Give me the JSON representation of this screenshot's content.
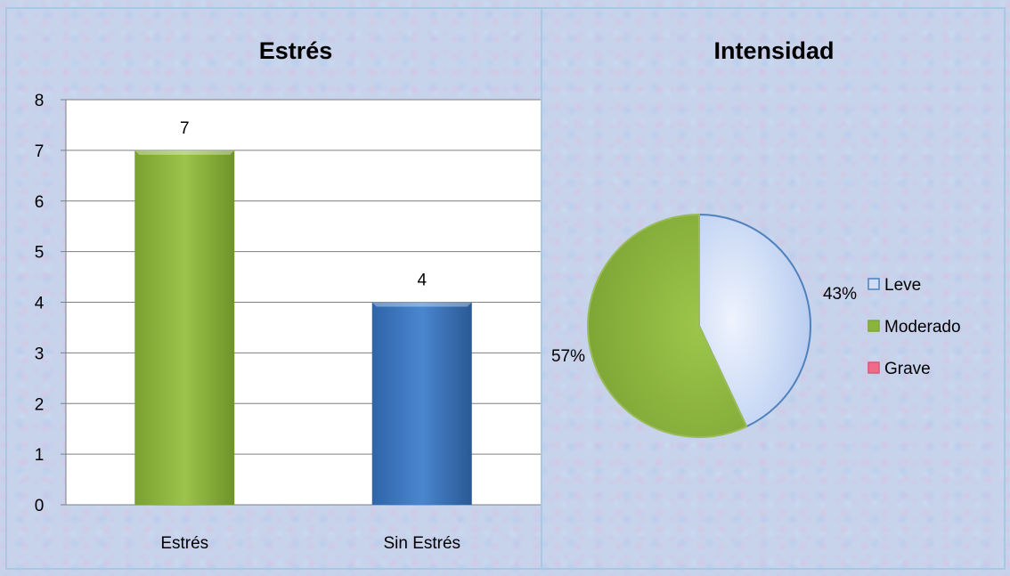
{
  "chart_data": [
    {
      "type": "bar",
      "title": "Estrés",
      "categories": [
        "Estrés",
        "Sin Estrés"
      ],
      "values": [
        7,
        4
      ],
      "data_labels": [
        "7",
        "4"
      ],
      "colors": [
        "#8bb53a",
        "#3d76c0"
      ],
      "ylim": [
        0,
        8
      ],
      "y_ticks": [
        "0",
        "1",
        "2",
        "3",
        "4",
        "5",
        "6",
        "7",
        "8"
      ],
      "grid": true,
      "xlabel": "",
      "ylabel": ""
    },
    {
      "type": "pie",
      "title": "Intensidad",
      "categories": [
        "Leve",
        "Moderado",
        "Grave"
      ],
      "values": [
        43,
        57,
        0
      ],
      "data_labels": [
        "43%",
        "57%",
        ""
      ],
      "colors": [
        "#cfdcf5",
        "#8bb53a",
        "#f06a8a"
      ],
      "legend_position": "right"
    }
  ]
}
